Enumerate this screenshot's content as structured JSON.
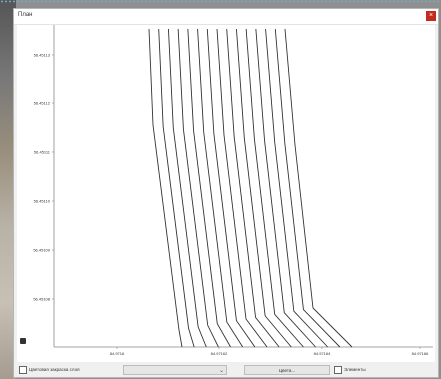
{
  "window": {
    "title": "План",
    "close_label": "×"
  },
  "chart_data": {
    "type": "line",
    "y_tick_labels": [
      "56.45113",
      "56.45112",
      "56.45111",
      "56.45110",
      "56.45109",
      "56.45108"
    ],
    "x_tick_labels": [
      "84.9716",
      "84.97162",
      "84.97164",
      "84.97166"
    ],
    "series_count": 15,
    "grid": false,
    "line_color": "#333333"
  },
  "bottom": {
    "color_checkbox_label": "Цветовая закраска слоя",
    "combo_value": "",
    "colors_button_label": "Цвета...",
    "elements_checkbox_label": "Элементы"
  }
}
